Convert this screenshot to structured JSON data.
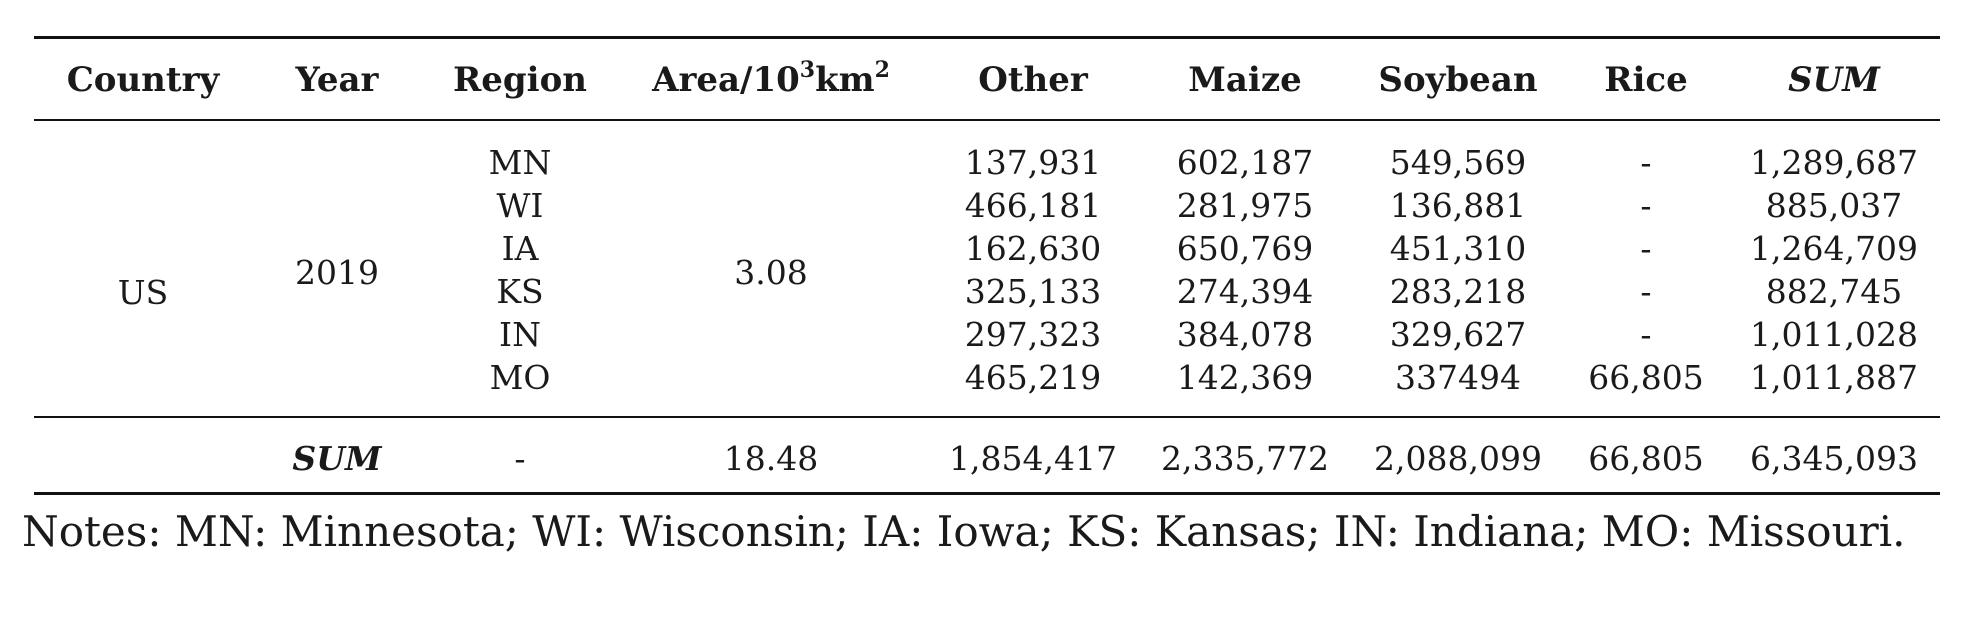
{
  "table": {
    "headers": {
      "country": "Country",
      "year": "Year",
      "region": "Region",
      "area_prefix": "Area/10",
      "area_exp1": "3",
      "area_unit": "km",
      "area_exp2": "2",
      "other": "Other",
      "maize": "Maize",
      "soybean": "Soybean",
      "rice": "Rice",
      "sum": "SUM"
    },
    "group": {
      "country": "US",
      "year": "2019",
      "area": "3.08"
    },
    "rows": [
      {
        "region": "MN",
        "other": "137,931",
        "maize": "602,187",
        "soybean": "549,569",
        "rice": "-",
        "sum": "1,289,687"
      },
      {
        "region": "WI",
        "other": "466,181",
        "maize": "281,975",
        "soybean": "136,881",
        "rice": "-",
        "sum": "885,037"
      },
      {
        "region": "IA",
        "other": "162,630",
        "maize": "650,769",
        "soybean": "451,310",
        "rice": "-",
        "sum": "1,264,709"
      },
      {
        "region": "KS",
        "other": "325,133",
        "maize": "274,394",
        "soybean": "283,218",
        "rice": "-",
        "sum": "882,745"
      },
      {
        "region": "IN",
        "other": "297,323",
        "maize": "384,078",
        "soybean": "329,627",
        "rice": "-",
        "sum": "1,011,028"
      },
      {
        "region": "MO",
        "other": "465,219",
        "maize": "142,369",
        "soybean": "337494",
        "rice": "66,805",
        "sum": "1,011,887"
      }
    ],
    "total": {
      "label": "SUM",
      "region": "-",
      "area": "18.48",
      "other": "1,854,417",
      "maize": "2,335,772",
      "soybean": "2,088,099",
      "rice": "66,805",
      "sum": "6,345,093"
    }
  },
  "notes": "Notes: MN: Minnesota; WI: Wisconsin; IA: Iowa; KS: Kansas; IN: Indiana; MO: Missouri."
}
